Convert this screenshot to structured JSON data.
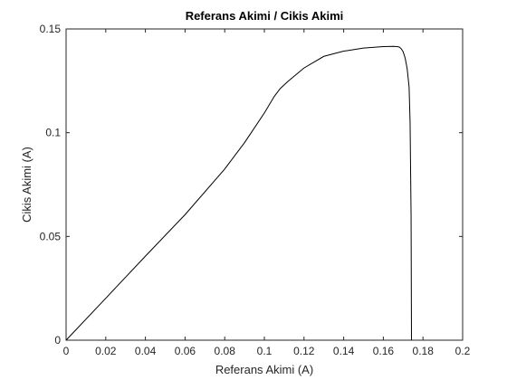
{
  "chart_data": {
    "type": "line",
    "title": "Referans Akimi / Cikis Akimi",
    "xlabel": "Referans Akimi (A)",
    "ylabel": "Cikis Akimi (A)",
    "xlim": [
      0,
      0.2
    ],
    "ylim": [
      0,
      0.15
    ],
    "xticks": [
      0,
      0.02,
      0.04,
      0.06,
      0.08,
      0.1,
      0.12,
      0.14,
      0.16,
      0.18,
      0.2
    ],
    "xtick_labels": [
      "0",
      "0.02",
      "0.04",
      "0.06",
      "0.08",
      "0.1",
      "0.12",
      "0.14",
      "0.16",
      "0.18",
      "0.2"
    ],
    "yticks": [
      0,
      0.05,
      0.1,
      0.15
    ],
    "ytick_labels": [
      "0",
      "0.05",
      "0.1",
      "0.15"
    ],
    "grid": false,
    "line_color": "#000000",
    "series": [
      {
        "x": [
          0,
          0.02,
          0.04,
          0.06,
          0.08,
          0.09,
          0.1,
          0.105,
          0.108,
          0.112,
          0.12,
          0.13,
          0.14,
          0.15,
          0.16,
          0.165,
          0.167,
          0.168,
          0.169,
          0.17,
          0.171,
          0.172,
          0.173,
          0.1735,
          0.174,
          0.1742
        ],
        "y": [
          0,
          0.0202,
          0.0405,
          0.0605,
          0.0825,
          0.0952,
          0.1095,
          0.1175,
          0.1213,
          0.1248,
          0.1312,
          0.1368,
          0.1393,
          0.1408,
          0.1415,
          0.1416,
          0.1415,
          0.1413,
          0.1405,
          0.139,
          0.136,
          0.131,
          0.122,
          0.105,
          0.06,
          0
        ]
      }
    ]
  }
}
